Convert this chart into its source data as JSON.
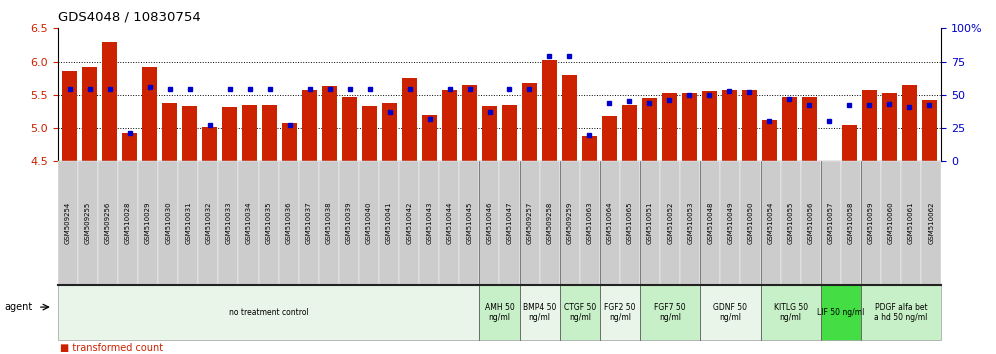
{
  "title": "GDS4048 / 10830754",
  "samples": [
    "GSM509254",
    "GSM509255",
    "GSM509256",
    "GSM510028",
    "GSM510029",
    "GSM510030",
    "GSM510031",
    "GSM510032",
    "GSM510033",
    "GSM510034",
    "GSM510035",
    "GSM510036",
    "GSM510037",
    "GSM510038",
    "GSM510039",
    "GSM510040",
    "GSM510041",
    "GSM510042",
    "GSM510043",
    "GSM510044",
    "GSM510045",
    "GSM510046",
    "GSM510047",
    "GSM509257",
    "GSM509258",
    "GSM509259",
    "GSM510063",
    "GSM510064",
    "GSM510065",
    "GSM510051",
    "GSM510052",
    "GSM510053",
    "GSM510048",
    "GSM510049",
    "GSM510050",
    "GSM510054",
    "GSM510055",
    "GSM510056",
    "GSM510057",
    "GSM510058",
    "GSM510059",
    "GSM510060",
    "GSM510061",
    "GSM510062"
  ],
  "bar_values": [
    5.85,
    5.92,
    6.3,
    4.93,
    5.92,
    5.37,
    5.33,
    5.02,
    5.32,
    5.35,
    5.35,
    5.08,
    5.57,
    5.63,
    5.47,
    5.33,
    5.38,
    5.75,
    5.2,
    5.57,
    5.65,
    5.33,
    5.35,
    5.67,
    6.02,
    5.8,
    4.88,
    5.18,
    5.35,
    5.45,
    5.53,
    5.53,
    5.55,
    5.57,
    5.57,
    5.12,
    5.47,
    5.47,
    4.5,
    5.05,
    5.57,
    5.52,
    5.65,
    5.42
  ],
  "percentile_values": [
    54,
    54,
    54,
    21,
    56,
    54,
    54,
    27,
    54,
    54,
    54,
    27,
    54,
    54,
    54,
    54,
    37,
    54,
    32,
    54,
    54,
    37,
    54,
    54,
    79,
    79,
    20,
    44,
    45,
    44,
    46,
    50,
    50,
    53,
    52,
    30,
    47,
    42,
    30,
    42,
    42,
    43,
    41,
    42
  ],
  "ylim_left": [
    4.5,
    6.5
  ],
  "ylim_right": [
    0,
    100
  ],
  "yticks_left": [
    4.5,
    5.0,
    5.5,
    6.0,
    6.5
  ],
  "yticks_right": [
    0,
    25,
    50,
    75,
    100
  ],
  "bar_color": "#cc2200",
  "dot_color": "#0000cc",
  "agents": [
    {
      "label": "no treatment control",
      "start": 0,
      "end": 21,
      "color": "#e8f5e8"
    },
    {
      "label": "AMH 50\nng/ml",
      "start": 21,
      "end": 23,
      "color": "#c8f0c8"
    },
    {
      "label": "BMP4 50\nng/ml",
      "start": 23,
      "end": 25,
      "color": "#e8f5e8"
    },
    {
      "label": "CTGF 50\nng/ml",
      "start": 25,
      "end": 27,
      "color": "#c8f0c8"
    },
    {
      "label": "FGF2 50\nng/ml",
      "start": 27,
      "end": 29,
      "color": "#e8f5e8"
    },
    {
      "label": "FGF7 50\nng/ml",
      "start": 29,
      "end": 32,
      "color": "#c8f0c8"
    },
    {
      "label": "GDNF 50\nng/ml",
      "start": 32,
      "end": 35,
      "color": "#e8f5e8"
    },
    {
      "label": "KITLG 50\nng/ml",
      "start": 35,
      "end": 38,
      "color": "#c8f0c8"
    },
    {
      "label": "LIF 50 ng/ml",
      "start": 38,
      "end": 40,
      "color": "#44dd44"
    },
    {
      "label": "PDGF alfa bet\na hd 50 ng/ml",
      "start": 40,
      "end": 44,
      "color": "#c8f0c8"
    }
  ],
  "n_samples": 44,
  "bar_color_legend": "#cc2200",
  "dot_color_legend": "#0000cc"
}
